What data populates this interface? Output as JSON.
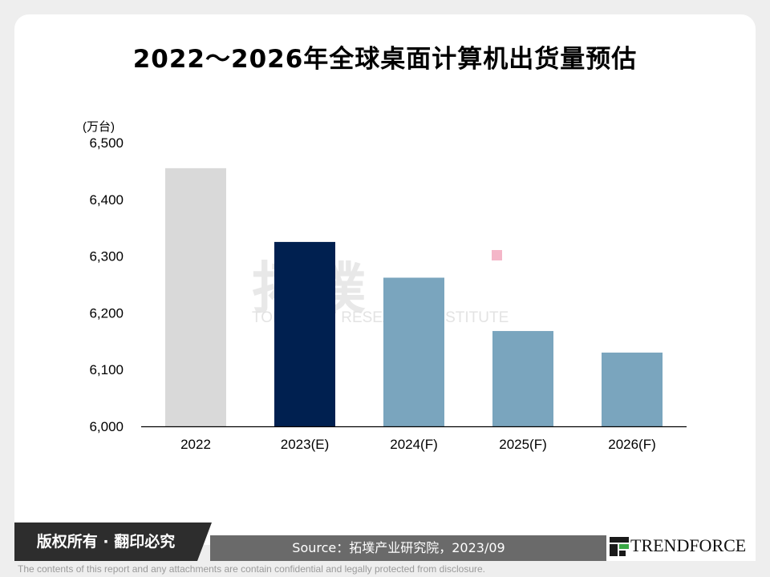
{
  "title": "2022～2026年全球桌面计算机出货量预估",
  "unit_label": "(万台)",
  "watermark": {
    "cn": "拓墣",
    "en": "TOPOLOGY RESEARCH INSTITUTE"
  },
  "footer": {
    "copyright": "版权所有 · 翻印必究",
    "source": "Source：拓墣产业研究院，2023/09",
    "logo": "TRENDFORCE",
    "disclaimer": "The contents of this report and any attachments are contain confidential and legally protected from disclosure."
  },
  "colors": {
    "bar_2022": "#d9d9d9",
    "bar_2023": "#002050",
    "bar_forecast": "#7aa5be"
  },
  "chart_data": {
    "type": "bar",
    "categories": [
      "2022",
      "2023(E)",
      "2024(F)",
      "2025(F)",
      "2026(F)"
    ],
    "values": [
      6455,
      6325,
      6262,
      6168,
      6130
    ],
    "ylabel": "(万台)",
    "ylim": [
      6000,
      6500
    ],
    "yticks": [
      6000,
      6100,
      6200,
      6300,
      6400,
      6500
    ],
    "ytick_labels": [
      "6,000",
      "6,100",
      "6,200",
      "6,300",
      "6,400",
      "6,500"
    ],
    "grid": false,
    "legend": "none"
  }
}
